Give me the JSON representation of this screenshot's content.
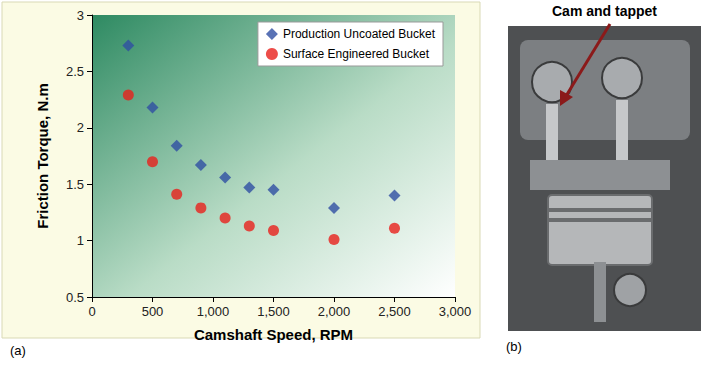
{
  "chart_data": {
    "type": "scatter",
    "x_label": "Camshaft Speed, RPM",
    "y_label": "Friction Torque, N.m",
    "xlim": [
      0,
      3000
    ],
    "xticks": [
      0,
      500,
      1000,
      1500,
      2000,
      2500,
      3000
    ],
    "ylim": [
      0.5,
      3
    ],
    "yticks": [
      0.5,
      1,
      1.5,
      2,
      2.5,
      3
    ],
    "grid": false,
    "legend": "upper right",
    "series": [
      {
        "name": "Production Uncoated Bucket",
        "color": "#2f4fa3",
        "marker": "diamond",
        "x": [
          300,
          500,
          700,
          900,
          1100,
          1300,
          1500,
          2000,
          2500
        ],
        "values": [
          2.73,
          2.18,
          1.84,
          1.67,
          1.56,
          1.47,
          1.45,
          1.29,
          1.4
        ]
      },
      {
        "name": "Surface Engineered Bucket",
        "color": "#e8211b",
        "marker": "circle",
        "x": [
          300,
          500,
          700,
          900,
          1100,
          1300,
          1500,
          2000,
          2500
        ],
        "values": [
          2.29,
          1.7,
          1.41,
          1.29,
          1.2,
          1.13,
          1.09,
          1.01,
          1.11
        ]
      }
    ],
    "annotations": [
      "(a)",
      "(b)",
      "Cam and tappet"
    ]
  }
}
